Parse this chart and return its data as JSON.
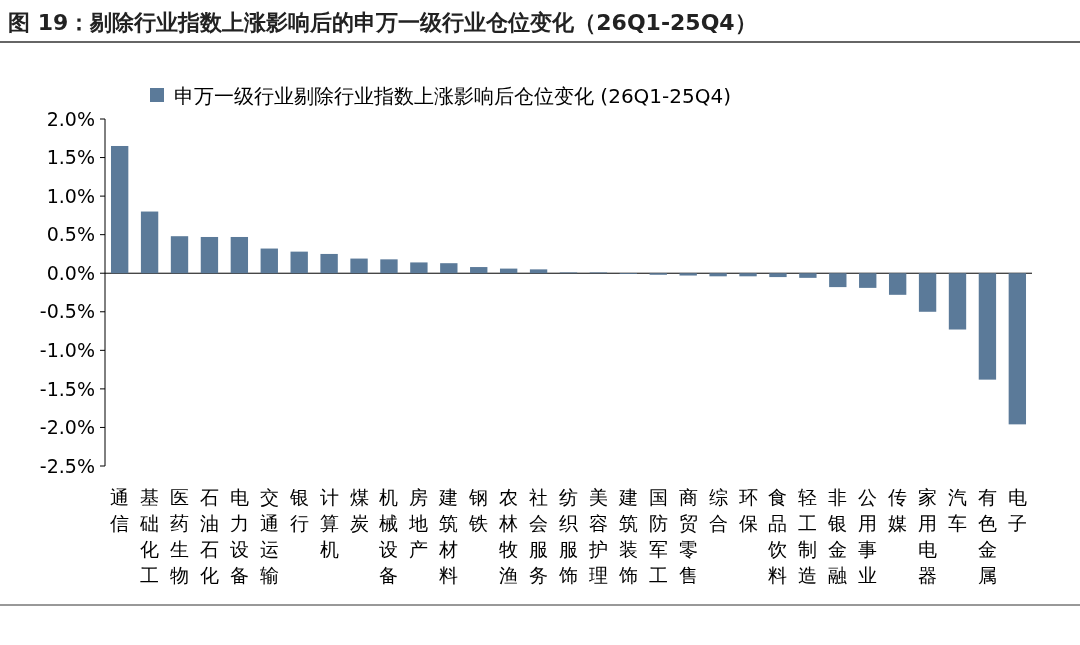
{
  "chart_data": {
    "type": "bar",
    "title": "图 19：剔除行业指数上涨影响后的申万一级行业仓位变化（26Q1-25Q4）",
    "categories": [
      "通信",
      "基础化工",
      "医药生物",
      "石油石化",
      "电力设备",
      "交通运输",
      "银行",
      "计算机",
      "煤炭",
      "机械设备",
      "房地产",
      "建筑材料",
      "钢铁",
      "农林牧渔",
      "社会服务",
      "纺织服饰",
      "美容护理",
      "建筑装饰",
      "国防军工",
      "商贸零售",
      "综合",
      "环保",
      "食品饮料",
      "轻工制造",
      "非银金融",
      "公用事业",
      "传媒",
      "家用电器",
      "汽车",
      "有色金属",
      "电子"
    ],
    "series": [
      {
        "name": "申万一级行业剔除行业指数上涨影响后仓位变化 (26Q1-25Q4)",
        "color": "#5b7a99",
        "values": [
          1.65,
          0.8,
          0.48,
          0.47,
          0.47,
          0.32,
          0.28,
          0.25,
          0.19,
          0.18,
          0.14,
          0.13,
          0.08,
          0.06,
          0.05,
          0.01,
          0.01,
          -0.01,
          -0.02,
          -0.03,
          -0.04,
          -0.04,
          -0.05,
          -0.06,
          -0.18,
          -0.19,
          -0.28,
          -0.5,
          -0.73,
          -1.38,
          -1.96
        ]
      }
    ],
    "ylim": [
      -2.5,
      2.0
    ],
    "yticks": [
      {
        "value": -2.5,
        "label": "-2.5%"
      },
      {
        "value": -2.0,
        "label": "-2.0%"
      },
      {
        "value": -1.5,
        "label": "-1.5%"
      },
      {
        "value": -1.0,
        "label": "-1.0%"
      },
      {
        "value": -0.5,
        "label": "-0.5%"
      },
      {
        "value": 0,
        "label": "0.0%"
      },
      {
        "value": 0.5,
        "label": "0.5%"
      },
      {
        "value": 1.0,
        "label": "1.0%"
      },
      {
        "value": 1.5,
        "label": "1.5%"
      },
      {
        "value": 2.0,
        "label": "2.0%"
      }
    ],
    "legend": "top"
  }
}
